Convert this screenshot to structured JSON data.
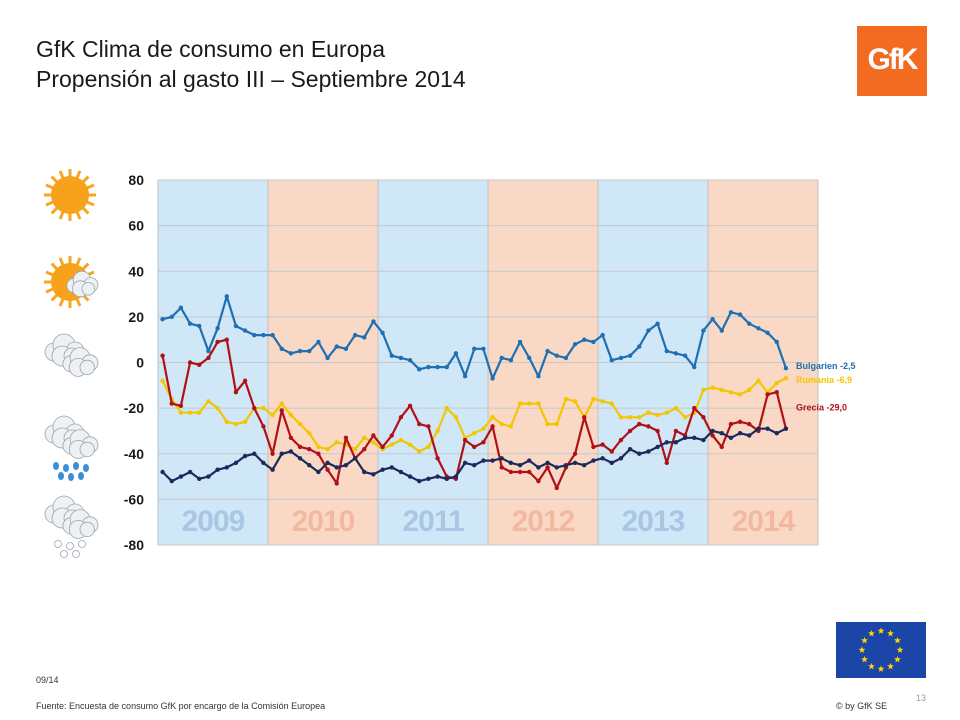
{
  "header": {
    "title_line1": "GfK Clima de consumo en Europa",
    "title_line2": "Propensión al gasto III – Septiembre 2014",
    "logo_text": "GfK"
  },
  "footer": {
    "date": "09/14",
    "source": "Fuente: Encuesta de consumo GfK por encargo de la Comisión Europea",
    "copyright": "© by GfK SE",
    "page_number": "13"
  },
  "weather_icons": [
    "sun-icon",
    "sun-cloud-icon",
    "cloud-icon",
    "rain-cloud-icon",
    "snow-cloud-icon"
  ],
  "colors": {
    "Bulgarien": "#1f6fb2",
    "Rumania": "#f2c600",
    "Grecia": "#b01116",
    "fourth_series": "#1a2a5c",
    "band_blue": "#cfe7f7",
    "band_orange": "#f9d9c6",
    "gfk_orange": "#f26b21"
  },
  "chart_data": {
    "type": "line",
    "ylim": [
      -80,
      80
    ],
    "yticks": [
      "80",
      "60",
      "40",
      "20",
      "0",
      "-20",
      "-40",
      "-60",
      "-80"
    ],
    "ytick_values": [
      80,
      60,
      40,
      20,
      0,
      -20,
      -40,
      -60,
      -80
    ],
    "grid": true,
    "year_bands": [
      {
        "label": "2009",
        "band": "blue"
      },
      {
        "label": "2010",
        "band": "orange"
      },
      {
        "label": "2011",
        "band": "blue"
      },
      {
        "label": "2012",
        "band": "orange"
      },
      {
        "label": "2013",
        "band": "blue"
      },
      {
        "label": "2014",
        "band": "orange"
      }
    ],
    "months_per_year": 12,
    "last_month_index": 68,
    "series": [
      {
        "name": "Bulgarien",
        "label": "Bulgarien  -2,5",
        "color_key": "Bulgarien",
        "values": [
          19,
          20,
          24,
          17,
          16,
          5,
          15,
          29,
          16,
          14,
          12,
          12,
          12,
          6,
          4,
          5,
          5,
          9,
          2,
          7,
          6,
          12,
          11,
          18,
          13,
          3,
          2,
          1,
          -3,
          -2,
          -2,
          -2,
          4,
          -6,
          6,
          6,
          -7,
          2,
          1,
          9,
          2,
          -6,
          5,
          3,
          2,
          8,
          10,
          9,
          12,
          1,
          2,
          3,
          7,
          14,
          17,
          5,
          4,
          3,
          -2,
          14,
          19,
          14,
          22,
          21,
          17,
          15,
          13,
          9,
          -2.5
        ]
      },
      {
        "name": "Rumania",
        "label": "Rumania  -6,9",
        "color_key": "Rumania",
        "values": [
          -8,
          -16,
          -22,
          -22,
          -22,
          -17,
          -20,
          -26,
          -27,
          -26,
          -20,
          -20,
          -23,
          -18,
          -23,
          -27,
          -31,
          -37,
          -38,
          -35,
          -36,
          -38,
          -33,
          -35,
          -38,
          -36,
          -34,
          -36,
          -39,
          -37,
          -30,
          -20,
          -24,
          -33,
          -31,
          -29,
          -24,
          -27,
          -28,
          -18,
          -18,
          -18,
          -27,
          -27,
          -16,
          -17,
          -24,
          -16,
          -17,
          -18,
          -24,
          -24,
          -24,
          -22,
          -23,
          -22,
          -20,
          -24,
          -22,
          -12,
          -11,
          -12,
          -13,
          -14,
          -12,
          -8,
          -13,
          -9,
          -6.9
        ]
      },
      {
        "name": "Grecia",
        "label": "Grecia  -29,0",
        "color_key": "Grecia",
        "values": [
          3,
          -18,
          -19,
          0,
          -1,
          2,
          9,
          10,
          -13,
          -8,
          -20,
          -28,
          -40,
          -21,
          -33,
          -37,
          -38,
          -40,
          -47,
          -53,
          -33,
          -42,
          -38,
          -32,
          -37,
          -32,
          -24,
          -19,
          -27,
          -28,
          -42,
          -50,
          -51,
          -34,
          -37,
          -35,
          -28,
          -46,
          -48,
          -48,
          -48,
          -52,
          -46,
          -55,
          -46,
          -40,
          -24,
          -37,
          -36,
          -39,
          -34,
          -30,
          -27,
          -28,
          -30,
          -44,
          -30,
          -32,
          -20,
          -24,
          -32,
          -37,
          -27,
          -26,
          -27,
          -30,
          -14,
          -13,
          -29
        ]
      },
      {
        "name": "",
        "label": "",
        "color_key": "fourth_series",
        "values": [
          -48,
          -52,
          -50,
          -48,
          -51,
          -50,
          -47,
          -46,
          -44,
          -41,
          -40,
          -44,
          -47,
          -40,
          -39,
          -42,
          -45,
          -48,
          -44,
          -46,
          -45,
          -42,
          -48,
          -49,
          -47,
          -46,
          -48,
          -50,
          -52,
          -51,
          -50,
          -51,
          -50,
          -44,
          -45,
          -43,
          -43,
          -42,
          -44,
          -45,
          -43,
          -46,
          -44,
          -46,
          -45,
          -44,
          -45,
          -43,
          -42,
          -44,
          -42,
          -38,
          -40,
          -39,
          -37,
          -35,
          -35,
          -33,
          -33,
          -34,
          -30,
          -31,
          -33,
          -31,
          -32,
          -29,
          -29,
          -31,
          -29
        ]
      }
    ]
  }
}
